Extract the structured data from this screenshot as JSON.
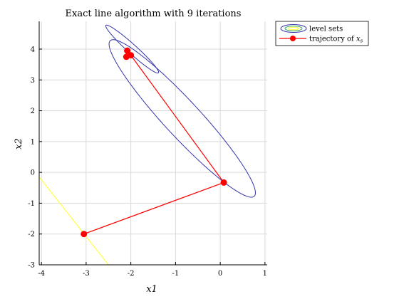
{
  "chart_data": {
    "type": "line",
    "title": "Exact line algorithm with 9 iterations",
    "xlabel": "x1",
    "ylabel": "x2",
    "xlim": [
      -4.05,
      1.05
    ],
    "ylim": [
      -3.0,
      4.9
    ],
    "xticks": [
      -4,
      -3,
      -2,
      -1,
      0,
      1
    ],
    "yticks": [
      -3,
      -2,
      -1,
      0,
      1,
      2,
      3,
      4
    ],
    "grid": true,
    "legend_position": "outside-top-right",
    "legend": {
      "level_sets": "level sets",
      "trajectory_prefix": "trajectory of ",
      "trajectory_var": "x",
      "trajectory_sub": "s"
    },
    "colors": {
      "trajectory": "#ff0000",
      "outer_level": "#3333aa",
      "inner_level": "#3333aa",
      "far_level": "#ffff44",
      "grid": "#d9d9d9",
      "axes": "#000000"
    },
    "series": [
      {
        "name": "trajectory of x_s",
        "points": [
          [
            -3.05,
            -2.0
          ],
          [
            0.08,
            -0.33
          ],
          [
            -2.0,
            3.8
          ],
          [
            -2.1,
            3.75
          ],
          [
            -2.08,
            3.95
          ]
        ]
      }
    ],
    "level_sets": [
      {
        "center": [
          -0.85,
          1.75
        ],
        "angle_deg": -58,
        "semi_major": 3.0,
        "semi_minor": 0.46
      },
      {
        "center": [
          -1.97,
          4.0
        ],
        "angle_deg": -53,
        "semi_major": 0.97,
        "semi_minor": 0.12
      }
    ],
    "far_level_line": {
      "x": [
        -4.05,
        -2.5
      ],
      "y": [
        -0.15,
        -3.0
      ]
    }
  }
}
